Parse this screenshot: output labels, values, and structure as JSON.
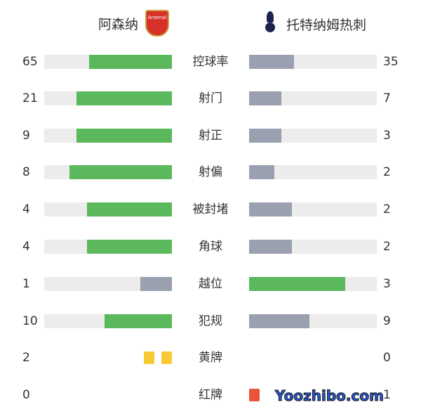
{
  "home": {
    "name": "阿森纳",
    "crest_text": "Arsenal"
  },
  "away": {
    "name": "托特纳姆热刺"
  },
  "colors": {
    "leader": "#5cb85c",
    "trailer": "#9aa0b0",
    "track": "#ececec",
    "yellow": "#f7c935",
    "red": "#e8533a"
  },
  "stats": [
    {
      "label": "控球率",
      "home": 65,
      "away": 35
    },
    {
      "label": "射门",
      "home": 21,
      "away": 7
    },
    {
      "label": "射正",
      "home": 9,
      "away": 3
    },
    {
      "label": "射偏",
      "home": 8,
      "away": 2
    },
    {
      "label": "被封堵",
      "home": 4,
      "away": 2
    },
    {
      "label": "角球",
      "home": 4,
      "away": 2
    },
    {
      "label": "越位",
      "home": 1,
      "away": 3
    },
    {
      "label": "犯规",
      "home": 10,
      "away": 9
    }
  ],
  "cards": [
    {
      "label": "黄牌",
      "home": 2,
      "away": 0,
      "type": "yellow"
    },
    {
      "label": "红牌",
      "home": 0,
      "away": 1,
      "type": "red"
    }
  ],
  "watermark": "Yoozhibo.com"
}
